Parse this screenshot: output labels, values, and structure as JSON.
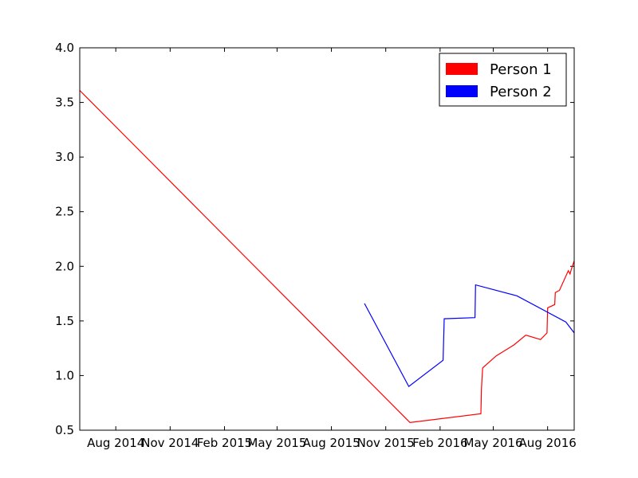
{
  "chart_data": {
    "type": "line",
    "title": "",
    "xlabel": "",
    "ylabel": "",
    "x_axis_type": "date",
    "xlim": [
      "2014-06-01",
      "2016-09-15"
    ],
    "ylim": [
      0.5,
      4.0
    ],
    "y_ticks": [
      0.5,
      1.0,
      1.5,
      2.0,
      2.5,
      3.0,
      3.5,
      4.0
    ],
    "y_tick_labels": [
      "0.5",
      "1.0",
      "1.5",
      "2.0",
      "2.5",
      "3.0",
      "3.5",
      "4.0"
    ],
    "x_ticks": [
      "2014-08-01",
      "2014-11-01",
      "2015-02-01",
      "2015-05-01",
      "2015-08-01",
      "2015-11-01",
      "2016-02-01",
      "2016-05-01",
      "2016-08-01"
    ],
    "x_tick_labels": [
      "Aug 2014",
      "Nov 2014",
      "Feb 2015",
      "May 2015",
      "Aug 2015",
      "Nov 2015",
      "Feb 2016",
      "May 2016",
      "Aug 2016"
    ],
    "grid": false,
    "legend_position": "top-right",
    "series": [
      {
        "name": "Person 1",
        "color": "#ff0000",
        "points": [
          {
            "x": "2014-06-01",
            "y": 3.61
          },
          {
            "x": "2015-12-12",
            "y": 0.57
          },
          {
            "x": "2016-04-10",
            "y": 0.65
          },
          {
            "x": "2016-04-11",
            "y": 0.88
          },
          {
            "x": "2016-04-13",
            "y": 1.07
          },
          {
            "x": "2016-05-06",
            "y": 1.18
          },
          {
            "x": "2016-06-05",
            "y": 1.28
          },
          {
            "x": "2016-06-25",
            "y": 1.37
          },
          {
            "x": "2016-07-20",
            "y": 1.33
          },
          {
            "x": "2016-07-31",
            "y": 1.39
          },
          {
            "x": "2016-08-01",
            "y": 1.62
          },
          {
            "x": "2016-08-13",
            "y": 1.65
          },
          {
            "x": "2016-08-14",
            "y": 1.76
          },
          {
            "x": "2016-08-21",
            "y": 1.78
          },
          {
            "x": "2016-09-05",
            "y": 1.96
          },
          {
            "x": "2016-09-08",
            "y": 1.93
          },
          {
            "x": "2016-09-10",
            "y": 1.97
          },
          {
            "x": "2016-09-15",
            "y": 2.05
          }
        ]
      },
      {
        "name": "Person 2",
        "color": "#0000ff",
        "points": [
          {
            "x": "2015-09-26",
            "y": 1.66
          },
          {
            "x": "2015-12-10",
            "y": 0.9
          },
          {
            "x": "2016-02-06",
            "y": 1.14
          },
          {
            "x": "2016-02-08",
            "y": 1.52
          },
          {
            "x": "2016-03-31",
            "y": 1.53
          },
          {
            "x": "2016-04-01",
            "y": 1.83
          },
          {
            "x": "2016-06-10",
            "y": 1.73
          },
          {
            "x": "2016-09-01",
            "y": 1.49
          },
          {
            "x": "2016-09-15",
            "y": 1.39
          }
        ]
      }
    ]
  }
}
